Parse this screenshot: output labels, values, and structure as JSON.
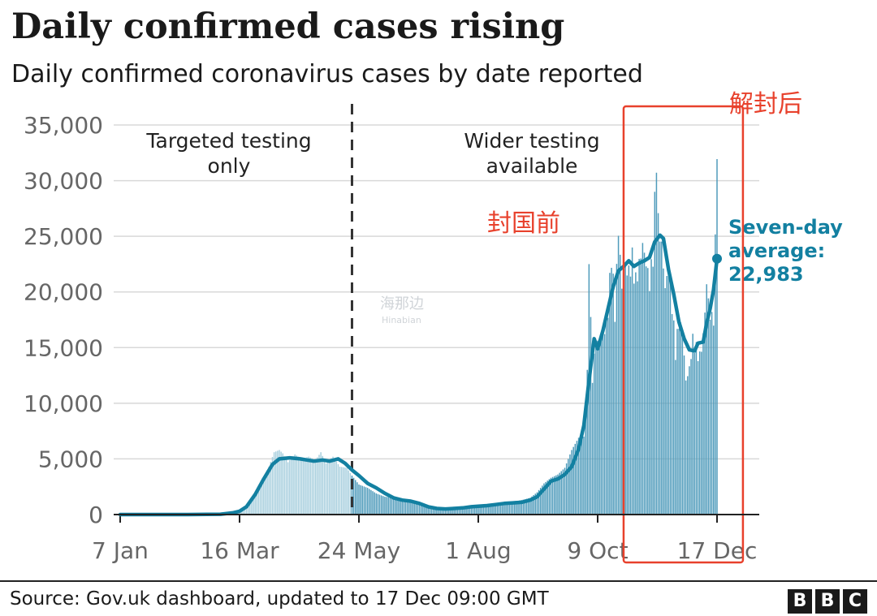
{
  "title": "Daily confirmed cases rising",
  "subtitle": "Daily confirmed coronavirus cases by date reported",
  "source": "Source: Gov.uk dashboard, updated to 17 Dec 09:00 GMT",
  "logo": [
    "B",
    "B",
    "C"
  ],
  "colors": {
    "series_line": "#1380A1",
    "bar_before": "#A8CFDE",
    "bar_after": "#4F9BBB",
    "grid": "#d8d8d8",
    "axis": "#222222",
    "annotation": "#E8412C"
  },
  "watermark": {
    "main": "海那边",
    "sub": "Hinabian"
  },
  "chart_data": {
    "type": "bar",
    "title": "Daily confirmed cases rising",
    "subtitle": "Daily confirmed coronavirus cases by date reported",
    "ylim": [
      0,
      35000
    ],
    "y_ticks": [
      0,
      5000,
      10000,
      15000,
      20000,
      25000,
      30000,
      35000
    ],
    "y_tick_labels": [
      "0",
      "5,000",
      "10,000",
      "15,000",
      "20,000",
      "25,000",
      "30,000",
      "35,000"
    ],
    "x_ticks": [
      {
        "date": "2020-01-07",
        "label": "7 Jan"
      },
      {
        "date": "2020-03-16",
        "label": "16 Mar"
      },
      {
        "date": "2020-05-24",
        "label": "24 May"
      },
      {
        "date": "2020-08-01",
        "label": "1 Aug"
      },
      {
        "date": "2020-10-09",
        "label": "9 Oct"
      },
      {
        "date": "2020-12-17",
        "label": "17 Dec"
      }
    ],
    "x_range": [
      "2020-01-07",
      "2020-12-17"
    ],
    "grid": true,
    "divider": {
      "date": "2020-05-20",
      "style": "dashed"
    },
    "regions": [
      {
        "label_lines": [
          "Targeted testing",
          "only"
        ]
      },
      {
        "label_lines": [
          "Wider testing",
          "available"
        ]
      }
    ],
    "series": [
      {
        "name": "Daily confirmed cases",
        "kind": "bar",
        "points": [
          [
            "2020-01-07",
            0
          ],
          [
            "2020-02-01",
            5
          ],
          [
            "2020-02-20",
            20
          ],
          [
            "2020-03-01",
            50
          ],
          [
            "2020-03-10",
            150
          ],
          [
            "2020-03-16",
            350
          ],
          [
            "2020-03-20",
            800
          ],
          [
            "2020-03-25",
            1800
          ],
          [
            "2020-03-29",
            3000
          ],
          [
            "2020-04-02",
            4300
          ],
          [
            "2020-04-05",
            5600
          ],
          [
            "2020-04-08",
            5800
          ],
          [
            "2020-04-10",
            5500
          ],
          [
            "2020-04-13",
            4700
          ],
          [
            "2020-04-17",
            5400
          ],
          [
            "2020-04-21",
            5000
          ],
          [
            "2020-04-25",
            5200
          ],
          [
            "2020-04-29",
            4900
          ],
          [
            "2020-05-02",
            5600
          ],
          [
            "2020-05-05",
            4600
          ],
          [
            "2020-05-09",
            5200
          ],
          [
            "2020-05-13",
            4300
          ],
          [
            "2020-05-17",
            4200
          ],
          [
            "2020-05-20",
            3500
          ],
          [
            "2020-05-24",
            2700
          ],
          [
            "2020-05-29",
            2400
          ],
          [
            "2020-06-03",
            1900
          ],
          [
            "2020-06-08",
            1600
          ],
          [
            "2020-06-13",
            1500
          ],
          [
            "2020-06-18",
            1300
          ],
          [
            "2020-06-23",
            1100
          ],
          [
            "2020-06-28",
            900
          ],
          [
            "2020-07-03",
            700
          ],
          [
            "2020-07-08",
            600
          ],
          [
            "2020-07-13",
            600
          ],
          [
            "2020-07-18",
            700
          ],
          [
            "2020-07-23",
            700
          ],
          [
            "2020-07-28",
            800
          ],
          [
            "2020-08-01",
            850
          ],
          [
            "2020-08-06",
            900
          ],
          [
            "2020-08-11",
            1000
          ],
          [
            "2020-08-16",
            1100
          ],
          [
            "2020-08-21",
            1150
          ],
          [
            "2020-08-26",
            1300
          ],
          [
            "2020-08-31",
            1500
          ],
          [
            "2020-09-04",
            2000
          ],
          [
            "2020-09-08",
            2800
          ],
          [
            "2020-09-12",
            3300
          ],
          [
            "2020-09-16",
            3600
          ],
          [
            "2020-09-20",
            4200
          ],
          [
            "2020-09-24",
            5800
          ],
          [
            "2020-09-28",
            6900
          ],
          [
            "2020-10-01",
            7000
          ],
          [
            "2020-10-03",
            13000
          ],
          [
            "2020-10-04",
            22500
          ],
          [
            "2020-10-06",
            13000
          ],
          [
            "2020-10-08",
            16000
          ],
          [
            "2020-10-10",
            15600
          ],
          [
            "2020-10-13",
            17000
          ],
          [
            "2020-10-15",
            19000
          ],
          [
            "2020-10-17",
            24500
          ],
          [
            "2020-10-19",
            18800
          ],
          [
            "2020-10-21",
            26500
          ],
          [
            "2020-10-23",
            21000
          ],
          [
            "2020-10-25",
            23000
          ],
          [
            "2020-10-27",
            22500
          ],
          [
            "2020-10-29",
            24000
          ],
          [
            "2020-10-31",
            21800
          ],
          [
            "2020-11-02",
            23200
          ],
          [
            "2020-11-04",
            25000
          ],
          [
            "2020-11-06",
            23300
          ],
          [
            "2020-11-08",
            21500
          ],
          [
            "2020-11-10",
            24500
          ],
          [
            "2020-11-12",
            33500
          ],
          [
            "2020-11-13",
            27200
          ],
          [
            "2020-11-15",
            24900
          ],
          [
            "2020-11-17",
            21000
          ],
          [
            "2020-11-19",
            22700
          ],
          [
            "2020-11-21",
            19500
          ],
          [
            "2020-11-23",
            15400
          ],
          [
            "2020-11-25",
            18000
          ],
          [
            "2020-11-27",
            16800
          ],
          [
            "2020-11-29",
            12400
          ],
          [
            "2020-12-01",
            13500
          ],
          [
            "2020-12-03",
            16300
          ],
          [
            "2020-12-05",
            15500
          ],
          [
            "2020-12-07",
            14700
          ],
          [
            "2020-12-09",
            16500
          ],
          [
            "2020-12-11",
            21300
          ],
          [
            "2020-12-13",
            18400
          ],
          [
            "2020-12-15",
            18300
          ],
          [
            "2020-12-16",
            25200
          ],
          [
            "2020-12-17",
            35400
          ]
        ]
      },
      {
        "name": "Seven-day average",
        "kind": "line",
        "points": [
          [
            "2020-01-07",
            0
          ],
          [
            "2020-02-15",
            0
          ],
          [
            "2020-03-05",
            30
          ],
          [
            "2020-03-12",
            150
          ],
          [
            "2020-03-16",
            300
          ],
          [
            "2020-03-20",
            700
          ],
          [
            "2020-03-25",
            1800
          ],
          [
            "2020-03-30",
            3200
          ],
          [
            "2020-04-04",
            4500
          ],
          [
            "2020-04-08",
            5000
          ],
          [
            "2020-04-14",
            5100
          ],
          [
            "2020-04-20",
            5000
          ],
          [
            "2020-04-24",
            4900
          ],
          [
            "2020-04-28",
            4800
          ],
          [
            "2020-05-03",
            4900
          ],
          [
            "2020-05-07",
            4800
          ],
          [
            "2020-05-12",
            5000
          ],
          [
            "2020-05-16",
            4600
          ],
          [
            "2020-05-20",
            4000
          ],
          [
            "2020-05-24",
            3500
          ],
          [
            "2020-05-29",
            2800
          ],
          [
            "2020-06-03",
            2400
          ],
          [
            "2020-06-08",
            1900
          ],
          [
            "2020-06-13",
            1500
          ],
          [
            "2020-06-18",
            1300
          ],
          [
            "2020-06-23",
            1200
          ],
          [
            "2020-06-28",
            1000
          ],
          [
            "2020-07-03",
            700
          ],
          [
            "2020-07-08",
            550
          ],
          [
            "2020-07-13",
            500
          ],
          [
            "2020-07-18",
            550
          ],
          [
            "2020-07-23",
            600
          ],
          [
            "2020-07-28",
            700
          ],
          [
            "2020-08-01",
            750
          ],
          [
            "2020-08-06",
            800
          ],
          [
            "2020-08-11",
            900
          ],
          [
            "2020-08-16",
            1000
          ],
          [
            "2020-08-21",
            1050
          ],
          [
            "2020-08-26",
            1100
          ],
          [
            "2020-08-31",
            1300
          ],
          [
            "2020-09-04",
            1600
          ],
          [
            "2020-09-08",
            2300
          ],
          [
            "2020-09-12",
            3000
          ],
          [
            "2020-09-16",
            3200
          ],
          [
            "2020-09-20",
            3600
          ],
          [
            "2020-09-24",
            4300
          ],
          [
            "2020-09-28",
            5900
          ],
          [
            "2020-10-01",
            8000
          ],
          [
            "2020-10-04",
            12000
          ],
          [
            "2020-10-07",
            15800
          ],
          [
            "2020-10-09",
            14900
          ],
          [
            "2020-10-12",
            16500
          ],
          [
            "2020-10-15",
            18500
          ],
          [
            "2020-10-18",
            20500
          ],
          [
            "2020-10-21",
            21900
          ],
          [
            "2020-10-24",
            22300
          ],
          [
            "2020-10-27",
            22800
          ],
          [
            "2020-10-30",
            22300
          ],
          [
            "2020-11-02",
            22600
          ],
          [
            "2020-11-05",
            22800
          ],
          [
            "2020-11-08",
            23100
          ],
          [
            "2020-11-11",
            24500
          ],
          [
            "2020-11-14",
            25100
          ],
          [
            "2020-11-16",
            24800
          ],
          [
            "2020-11-19",
            22000
          ],
          [
            "2020-11-22",
            19800
          ],
          [
            "2020-11-25",
            17300
          ],
          [
            "2020-11-28",
            15800
          ],
          [
            "2020-12-01",
            14800
          ],
          [
            "2020-12-04",
            14700
          ],
          [
            "2020-12-06",
            15400
          ],
          [
            "2020-12-09",
            15500
          ],
          [
            "2020-12-11",
            17200
          ],
          [
            "2020-12-13",
            18500
          ],
          [
            "2020-12-15",
            20200
          ],
          [
            "2020-12-17",
            22983
          ]
        ]
      }
    ],
    "annotations": {
      "seven_day": {
        "lines": [
          "Seven-day",
          "average:",
          "22,983"
        ],
        "date": "2020-12-17",
        "value": 22983
      },
      "before_lockdown": {
        "text": "封国前"
      },
      "after_unlock": {
        "text": "解封后"
      },
      "highlight_box": {
        "from": "2020-10-24",
        "to": "2020-12-24"
      }
    }
  }
}
